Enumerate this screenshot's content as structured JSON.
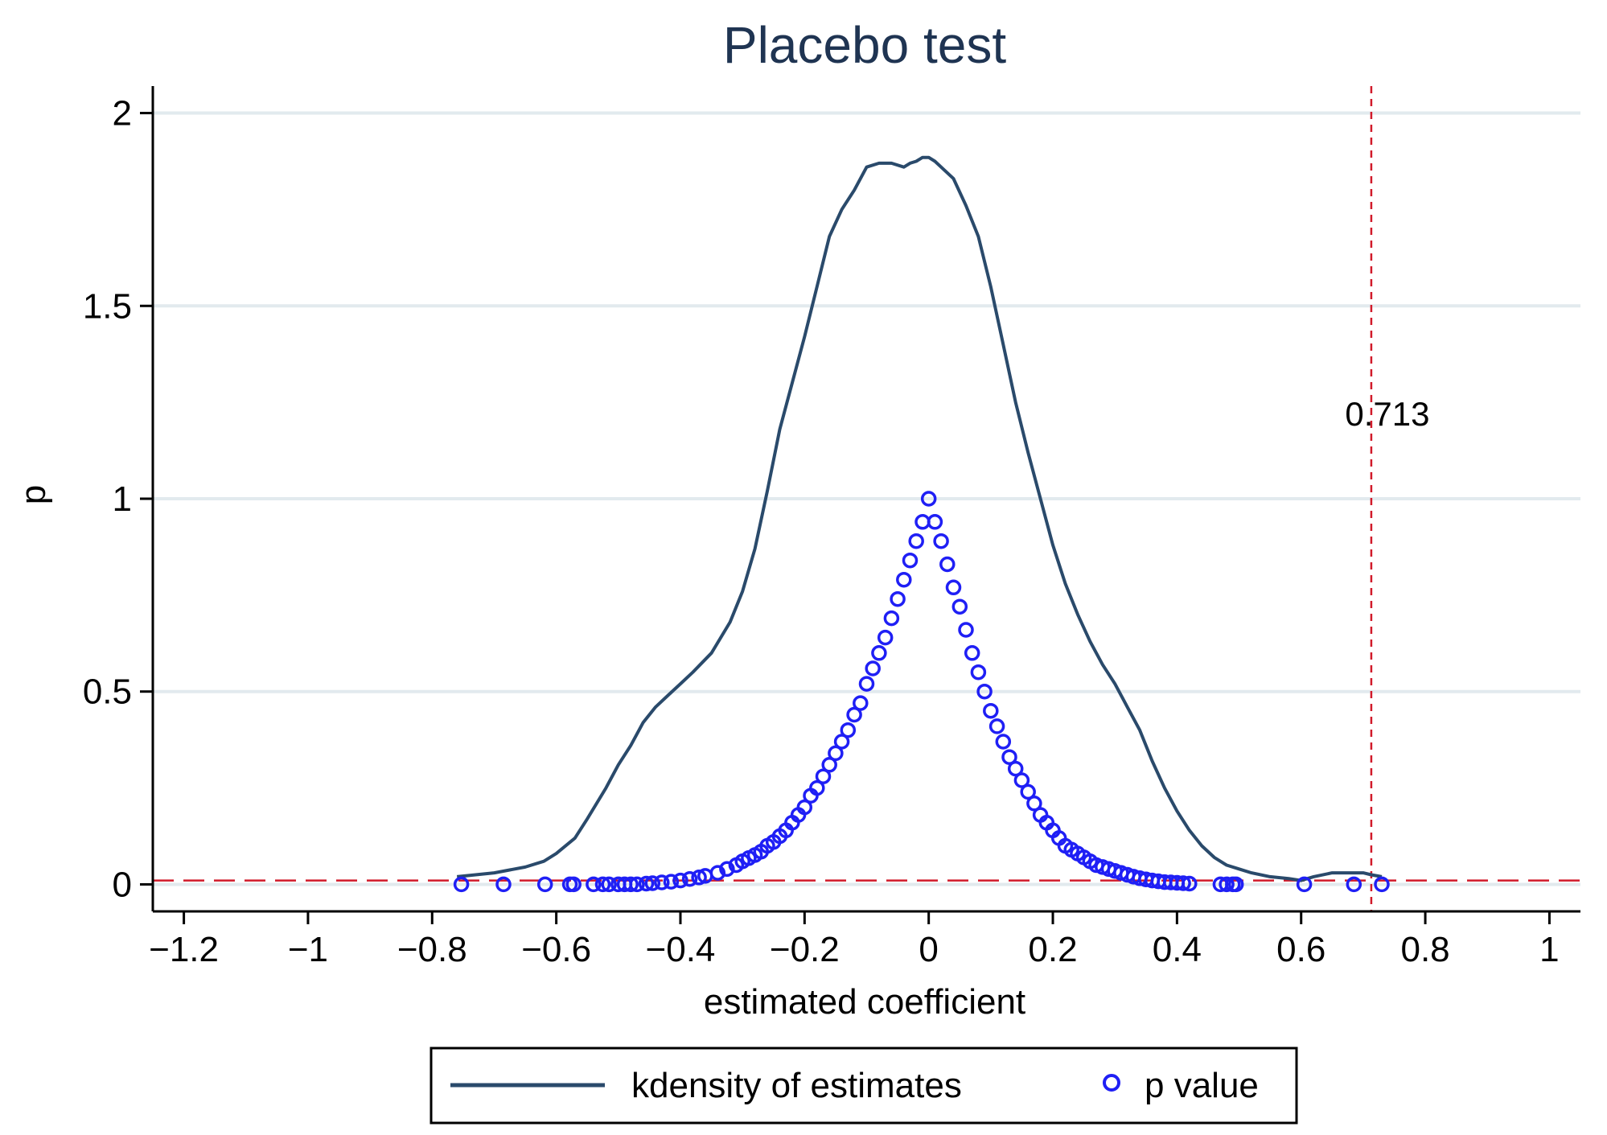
{
  "chart_data": {
    "type": "line",
    "title": "Placebo test",
    "xlabel": "estimated coefficient",
    "ylabel": "p",
    "xlim": [
      -1.25,
      1.05
    ],
    "ylim": [
      -0.07,
      2.07
    ],
    "xticks": [
      -1.2,
      -1,
      -0.8,
      -0.6,
      -0.4,
      -0.2,
      0,
      0.2,
      0.4,
      0.6,
      0.8,
      1
    ],
    "xtick_labels": [
      "−1.2",
      "−1",
      "−0.8",
      "−0.6",
      "−0.4",
      "−0.2",
      "0",
      "0.2",
      "0.4",
      "0.6",
      "0.8",
      "1"
    ],
    "yticks": [
      0,
      0.5,
      1,
      1.5,
      2
    ],
    "ytick_labels": [
      "0",
      "0.5",
      "1",
      "1.5",
      "2"
    ],
    "grid": true,
    "legend_position": "bottom",
    "series": [
      {
        "name": "kdensity of estimates",
        "kind": "line",
        "color": "#2a4a6b",
        "x": [
          -0.76,
          -0.7,
          -0.65,
          -0.62,
          -0.6,
          -0.57,
          -0.55,
          -0.52,
          -0.5,
          -0.48,
          -0.46,
          -0.44,
          -0.42,
          -0.4,
          -0.38,
          -0.35,
          -0.32,
          -0.3,
          -0.28,
          -0.26,
          -0.24,
          -0.22,
          -0.2,
          -0.18,
          -0.16,
          -0.14,
          -0.12,
          -0.1,
          -0.08,
          -0.06,
          -0.04,
          -0.03,
          -0.02,
          -0.01,
          0,
          0.01,
          0.02,
          0.04,
          0.06,
          0.08,
          0.1,
          0.12,
          0.14,
          0.16,
          0.18,
          0.2,
          0.22,
          0.24,
          0.26,
          0.28,
          0.3,
          0.32,
          0.34,
          0.36,
          0.38,
          0.4,
          0.42,
          0.44,
          0.46,
          0.48,
          0.5,
          0.52,
          0.55,
          0.58,
          0.6,
          0.62,
          0.65,
          0.68,
          0.7,
          0.713,
          0.73
        ],
        "y": [
          0.02,
          0.03,
          0.045,
          0.06,
          0.08,
          0.12,
          0.17,
          0.25,
          0.31,
          0.36,
          0.42,
          0.46,
          0.49,
          0.52,
          0.55,
          0.6,
          0.68,
          0.76,
          0.87,
          1.02,
          1.18,
          1.3,
          1.42,
          1.55,
          1.68,
          1.75,
          1.8,
          1.86,
          1.87,
          1.87,
          1.86,
          1.87,
          1.875,
          1.885,
          1.885,
          1.875,
          1.86,
          1.83,
          1.76,
          1.68,
          1.55,
          1.4,
          1.25,
          1.12,
          1.0,
          0.88,
          0.78,
          0.7,
          0.63,
          0.57,
          0.52,
          0.46,
          0.4,
          0.32,
          0.25,
          0.19,
          0.14,
          0.1,
          0.07,
          0.05,
          0.04,
          0.03,
          0.02,
          0.015,
          0.01,
          0.02,
          0.03,
          0.03,
          0.03,
          0.025,
          0.02
        ]
      },
      {
        "name": "p value",
        "kind": "scatter",
        "color": "#1f1ff5",
        "x": [
          -0.753,
          -0.685,
          -0.618,
          -0.578,
          -0.572,
          -0.54,
          -0.525,
          -0.515,
          -0.5,
          -0.49,
          -0.48,
          -0.47,
          -0.455,
          -0.445,
          -0.43,
          -0.415,
          -0.4,
          -0.385,
          -0.37,
          -0.36,
          -0.34,
          -0.325,
          -0.31,
          -0.3,
          -0.29,
          -0.28,
          -0.27,
          -0.26,
          -0.25,
          -0.24,
          -0.23,
          -0.22,
          -0.21,
          -0.2,
          -0.19,
          -0.18,
          -0.17,
          -0.16,
          -0.15,
          -0.14,
          -0.13,
          -0.12,
          -0.11,
          -0.1,
          -0.09,
          -0.08,
          -0.07,
          -0.06,
          -0.05,
          -0.04,
          -0.03,
          -0.02,
          -0.01,
          0,
          0.01,
          0.02,
          0.03,
          0.04,
          0.05,
          0.06,
          0.07,
          0.08,
          0.09,
          0.1,
          0.11,
          0.12,
          0.13,
          0.14,
          0.15,
          0.16,
          0.17,
          0.18,
          0.19,
          0.2,
          0.21,
          0.22,
          0.23,
          0.24,
          0.25,
          0.26,
          0.27,
          0.28,
          0.29,
          0.3,
          0.31,
          0.32,
          0.33,
          0.34,
          0.35,
          0.36,
          0.37,
          0.38,
          0.39,
          0.4,
          0.41,
          0.42,
          0.47,
          0.48,
          0.49,
          0.495,
          0.605,
          0.685,
          0.73
        ],
        "y": [
          0.0,
          0.0,
          0.0,
          0.0,
          0.0,
          0.0,
          0.0,
          0.0,
          0.0,
          0.0,
          0.0,
          0.0,
          0.002,
          0.003,
          0.005,
          0.007,
          0.01,
          0.014,
          0.018,
          0.022,
          0.03,
          0.04,
          0.05,
          0.06,
          0.068,
          0.076,
          0.085,
          0.1,
          0.11,
          0.125,
          0.14,
          0.16,
          0.18,
          0.2,
          0.23,
          0.25,
          0.28,
          0.31,
          0.34,
          0.37,
          0.4,
          0.44,
          0.47,
          0.52,
          0.56,
          0.6,
          0.64,
          0.69,
          0.74,
          0.79,
          0.84,
          0.89,
          0.94,
          1.0,
          0.94,
          0.89,
          0.83,
          0.77,
          0.72,
          0.66,
          0.6,
          0.55,
          0.5,
          0.45,
          0.41,
          0.37,
          0.33,
          0.3,
          0.27,
          0.24,
          0.21,
          0.18,
          0.16,
          0.14,
          0.12,
          0.1,
          0.09,
          0.08,
          0.07,
          0.06,
          0.05,
          0.045,
          0.04,
          0.035,
          0.03,
          0.025,
          0.02,
          0.016,
          0.013,
          0.01,
          0.008,
          0.006,
          0.005,
          0.004,
          0.003,
          0.002,
          0.0,
          0.0,
          0.0,
          0.0,
          0.0,
          0.0,
          0.0
        ]
      }
    ],
    "reference_lines": [
      {
        "orientation": "horizontal",
        "value": 0.01,
        "color": "#d11a2a",
        "style": "long-dash"
      },
      {
        "orientation": "vertical",
        "value": 0.713,
        "color": "#d11a2a",
        "style": "short-dash"
      }
    ],
    "annotations": [
      {
        "text": "0.713",
        "x": 0.713,
        "y": 1.19
      }
    ]
  }
}
